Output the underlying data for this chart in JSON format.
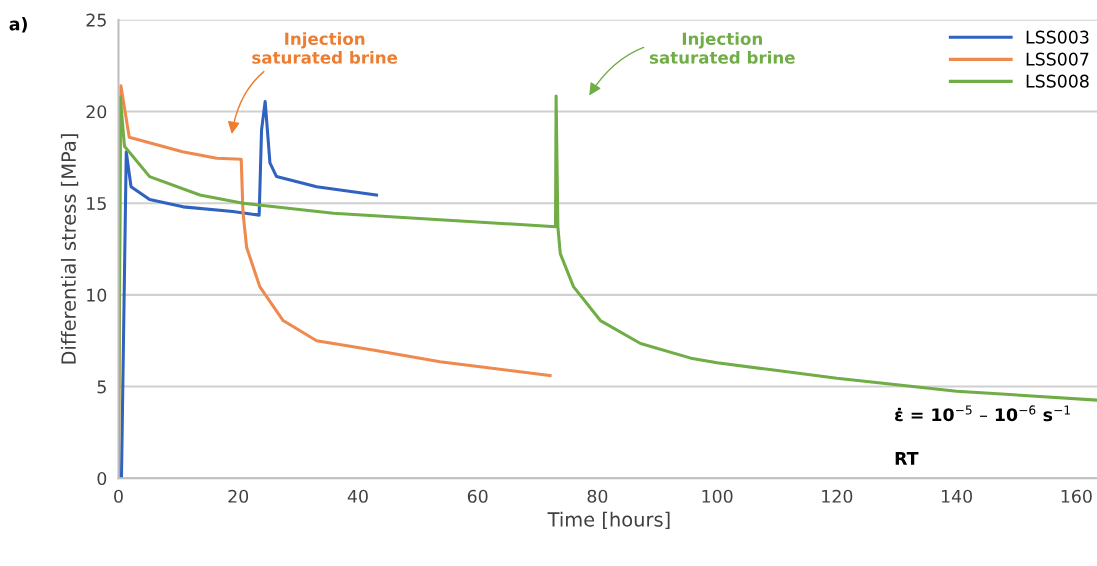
{
  "chart_data": {
    "type": "line",
    "xlabel": "Time [hours]",
    "ylabel": "Differential stress [MPa]",
    "xlim": [
      0,
      164
    ],
    "xticks": [
      0,
      20,
      40,
      60,
      80,
      100,
      120,
      140,
      160
    ],
    "ylim": [
      0,
      25
    ],
    "yticks": [
      0,
      5,
      10,
      15,
      20,
      25
    ],
    "grid": "y",
    "legend": "top right",
    "marker": "none",
    "line_style": "solid",
    "series": [
      {
        "name": "LSS003",
        "color": "#3062c0",
        "x": [
          0.5,
          1.3,
          2.1,
          5.2,
          10.8,
          19.1,
          23.5,
          23.9,
          24.5,
          25.3,
          26.4,
          33.1,
          43.1
        ],
        "values": [
          0,
          17.8,
          15.9,
          15.2,
          14.8,
          14.55,
          14.35,
          19.0,
          20.55,
          17.2,
          16.45,
          15.9,
          15.45
        ]
      },
      {
        "name": "LSS007",
        "color": "#ee8a4e",
        "x": [
          0,
          0.4,
          1.8,
          10.7,
          16.4,
          20.5,
          20.8,
          21.4,
          23.6,
          27.5,
          33.1,
          42.5,
          53.7,
          72.1
        ],
        "values": [
          0,
          21.4,
          18.6,
          17.8,
          17.45,
          17.4,
          14.5,
          12.6,
          10.45,
          8.6,
          7.5,
          7.0,
          6.35,
          5.6
        ]
      },
      {
        "name": "LSS008",
        "color": "#70ad47",
        "x": [
          0,
          0.3,
          1.0,
          5.2,
          13.6,
          20.8,
          35.9,
          53.7,
          73.0,
          73.1,
          73.4,
          73.8,
          76.0,
          80.5,
          87.2,
          95.6,
          100,
          120,
          140,
          164
        ],
        "values": [
          0,
          20.8,
          18.1,
          16.45,
          15.45,
          15.0,
          14.45,
          14.1,
          13.72,
          20.85,
          13.7,
          12.25,
          10.45,
          8.6,
          7.35,
          6.55,
          6.3,
          5.45,
          4.75,
          4.25
        ]
      }
    ],
    "annotations": [
      "Injection\nsaturated brine",
      "Injection\nsaturated brine",
      "ε̇ = 10$^{−5}$ – 10$^{−6}$ s$^{−1}$",
      "RT",
      "a)"
    ]
  }
}
